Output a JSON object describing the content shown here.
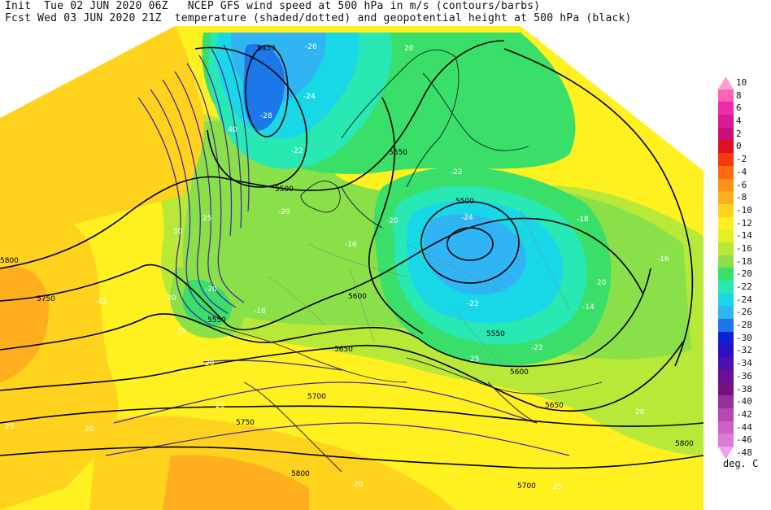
{
  "header": {
    "line1": "Init  Tue 02 JUN 2020 06Z   NCEP GFS wind speed at 500 hPa in m/s (contours/barbs)",
    "line2": "Fcst Wed 03 JUN 2020 21Z  temperature (shaded/dotted) and geopotential height at 500 hPa (black)"
  },
  "legend": {
    "unit": "deg. C",
    "entries": [
      {
        "label": "10",
        "color": "#ff9ec8"
      },
      {
        "label": "8",
        "color": "#ff60b8"
      },
      {
        "label": "6",
        "color": "#f02aa8"
      },
      {
        "label": "4",
        "color": "#d81a98"
      },
      {
        "label": "2",
        "color": "#c8107a"
      },
      {
        "label": "0",
        "color": "#e01020"
      },
      {
        "label": "-2",
        "color": "#f43a10"
      },
      {
        "label": "-4",
        "color": "#ff6a10"
      },
      {
        "label": "-6",
        "color": "#ff9018"
      },
      {
        "label": "-8",
        "color": "#ffae1e"
      },
      {
        "label": "-10",
        "color": "#ffd21e"
      },
      {
        "label": "-12",
        "color": "#fff020"
      },
      {
        "label": "-14",
        "color": "#e2f024"
      },
      {
        "label": "-16",
        "color": "#b8e838"
      },
      {
        "label": "-18",
        "color": "#8ae048"
      },
      {
        "label": "-20",
        "color": "#3adf6a"
      },
      {
        "label": "-22",
        "color": "#28e8b4"
      },
      {
        "label": "-24",
        "color": "#18d8e8"
      },
      {
        "label": "-26",
        "color": "#30b4f4"
      },
      {
        "label": "-28",
        "color": "#1a78e8"
      },
      {
        "label": "-30",
        "color": "#1020d8"
      },
      {
        "label": "-32",
        "color": "#2a10c0"
      },
      {
        "label": "-34",
        "color": "#4a10b0"
      },
      {
        "label": "-36",
        "color": "#6a1098"
      },
      {
        "label": "-38",
        "color": "#7a1080"
      },
      {
        "label": "-40",
        "color": "#98309a"
      },
      {
        "label": "-42",
        "color": "#b848b0"
      },
      {
        "label": "-44",
        "color": "#d060c8"
      },
      {
        "label": "-46",
        "color": "#e07ad8"
      },
      {
        "label": "-48",
        "color": "#f0a0ee"
      }
    ]
  },
  "map": {
    "height_labels": [
      "5450",
      "5500",
      "5550",
      "5550",
      "5600",
      "5650",
      "5700",
      "5750",
      "5800",
      "5500",
      "5550",
      "5600",
      "5650",
      "5700",
      "5750",
      "5800",
      "5800"
    ],
    "temp_labels": [
      "-26",
      "-28",
      "-24",
      "-22",
      "-20",
      "-18",
      "-16",
      "-12",
      "-20",
      "-22",
      "-24",
      "-22",
      "-18",
      "-16",
      "-20",
      "-22",
      "-14"
    ],
    "wind_labels": [
      "20",
      "25",
      "30",
      "40",
      "20",
      "15",
      "20",
      "20",
      "25",
      "20",
      "20",
      "25",
      "20",
      "20",
      "25"
    ]
  }
}
